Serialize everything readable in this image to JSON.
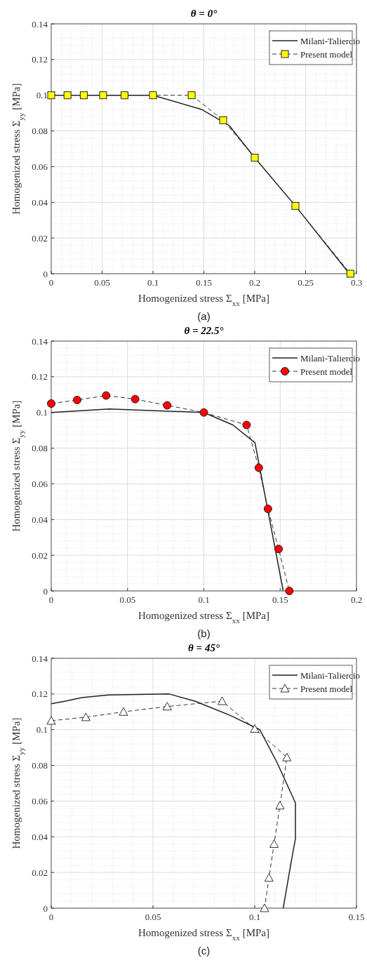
{
  "chart_data": [
    {
      "type": "line",
      "title": "θ = 0°",
      "xlabel": "Homogenized stress Σ$_{xx}$ [MPa]",
      "ylabel": "Homogenized stress Σ$_{yy}$ [MPa]",
      "annotations": [
        "(a)"
      ],
      "xlim": [
        0,
        0.3
      ],
      "xticks": [
        0,
        0.05,
        0.1,
        0.15,
        0.2,
        0.25,
        0.3
      ],
      "ylim": [
        0,
        0.14
      ],
      "yticks": [
        0,
        0.02,
        0.04,
        0.06,
        0.08,
        0.1,
        0.12,
        0.14
      ],
      "grid": true,
      "legend": "top right",
      "series": [
        {
          "name": "Milani-Taliercio",
          "color": "#222222",
          "line_style": "solid",
          "x": [
            0,
            0.1,
            0.148,
            0.175,
            0.2,
            0.24,
            0.293
          ],
          "values": [
            0.1,
            0.1,
            0.092,
            0.083,
            0.065,
            0.038,
            0
          ]
        },
        {
          "name": "Present model",
          "color": "#333333",
          "colors": [
            "#ffff00",
            "#ffff00",
            "#ffff00",
            "#ffff00",
            "#ffff00",
            "#ffff00",
            "#ffff00",
            "#ffff00",
            "#ffff00",
            "#ffff00",
            "#ffff00"
          ],
          "line_style": "dashed",
          "marker": "square",
          "x": [
            0,
            0.016,
            0.032,
            0.051,
            0.072,
            0.1,
            0.138,
            0.169,
            0.2,
            0.24,
            0.294
          ],
          "values": [
            0.1,
            0.1,
            0.1,
            0.1,
            0.1,
            0.1,
            0.1,
            0.086,
            0.065,
            0.038,
            0
          ]
        }
      ]
    },
    {
      "type": "line",
      "title": "θ = 22.5°",
      "xlabel": "Homogenized stress Σ$_{xx}$ [MPa]",
      "ylabel": "Homogenized stress Σ$_{yy}$ [MPa]",
      "annotations": [
        "(b)"
      ],
      "xlim": [
        0,
        0.2
      ],
      "xticks": [
        0,
        0.05,
        0.1,
        0.15,
        0.2
      ],
      "ylim": [
        0,
        0.14
      ],
      "yticks": [
        0,
        0.02,
        0.04,
        0.06,
        0.08,
        0.1,
        0.12,
        0.14
      ],
      "grid": true,
      "legend": "top right",
      "series": [
        {
          "name": "Milani-Taliercio",
          "color": "#222222",
          "line_style": "solid",
          "x": [
            0,
            0.038,
            0.1,
            0.119,
            0.1335,
            0.152
          ],
          "values": [
            0.1,
            0.102,
            0.1,
            0.093,
            0.083,
            0
          ]
        },
        {
          "name": "Present model",
          "color": "#333333",
          "colors": [
            "#ff0000",
            "#ff0000",
            "#ff0000",
            "#ff0000",
            "#ff0000",
            "#ff0000",
            "#ff0000",
            "#ff0000",
            "#ff0000",
            "#ff0000",
            "#ff0000"
          ],
          "line_style": "dashed",
          "marker": "circle",
          "x": [
            0,
            0.017,
            0.036,
            0.055,
            0.076,
            0.1,
            0.128,
            0.136,
            0.142,
            0.149,
            0.156
          ],
          "values": [
            0.105,
            0.107,
            0.1095,
            0.1075,
            0.104,
            0.1,
            0.093,
            0.069,
            0.046,
            0.0235,
            0
          ]
        }
      ]
    },
    {
      "type": "line",
      "title": "θ = 45°",
      "xlabel": "Homogenized stress Σ$_{xx}$ [MPa]",
      "ylabel": "Homogenized stress Σ$_{yy}$ [MPa]",
      "annotations": [
        "(c)"
      ],
      "xlim": [
        0,
        0.15
      ],
      "xticks": [
        0,
        0.05,
        0.1,
        0.15
      ],
      "ylim": [
        0,
        0.14
      ],
      "yticks": [
        0,
        0.02,
        0.04,
        0.06,
        0.08,
        0.1,
        0.12,
        0.14
      ],
      "grid": true,
      "legend": "top right",
      "series": [
        {
          "name": "Milani-Taliercio",
          "color": "#222222",
          "line_style": "solid",
          "x": [
            0,
            0.007,
            0.015,
            0.028,
            0.058,
            0.0706,
            0.088,
            0.1025,
            0.111,
            0.12,
            0.12,
            0.118,
            0.114
          ],
          "values": [
            0.1145,
            0.116,
            0.118,
            0.1195,
            0.12,
            0.116,
            0.108,
            0.1,
            0.0815,
            0.059,
            0.039,
            0.0265,
            0
          ]
        },
        {
          "name": "Present model",
          "color": "#333333",
          "colors": [
            "#ffffff",
            "#ffffff",
            "#ffffff",
            "#ffffff",
            "#ffffff",
            "#ffffff",
            "#ffffff",
            "#ffffff",
            "#ffffff",
            "#ffffff",
            "#ffffff"
          ],
          "line_style": "dashed",
          "marker": "triangle",
          "x": [
            0,
            0.017,
            0.0355,
            0.057,
            0.084,
            0.1,
            0.1158,
            0.1124,
            0.1095,
            0.107,
            0.1048
          ],
          "values": [
            0.105,
            0.107,
            0.11,
            0.113,
            0.116,
            0.1005,
            0.0845,
            0.0575,
            0.036,
            0.017,
            0
          ]
        }
      ]
    }
  ]
}
